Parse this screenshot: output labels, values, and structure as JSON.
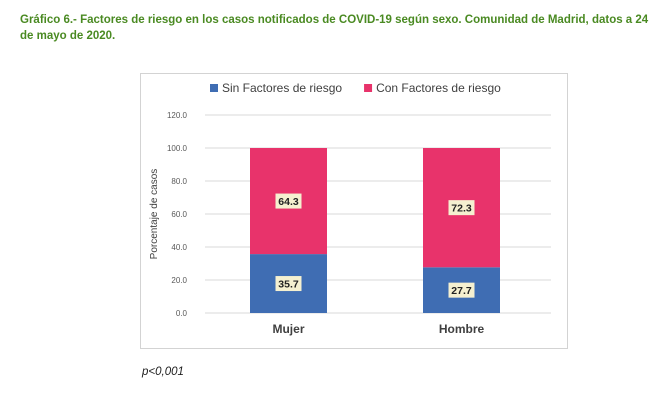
{
  "caption": "Gráfico 6.- Factores de riesgo en los casos notificados de COVID-19 según sexo. Comunidad de Madrid, datos a 24 de mayo de 2020.",
  "footnote": "p<0,001",
  "chart_data": {
    "type": "bar",
    "stacked": true,
    "categories": [
      "Mujer",
      "Hombre"
    ],
    "series": [
      {
        "name": "Sin Factores de riesgo",
        "values": [
          35.7,
          27.7
        ],
        "color": "#3f6db3"
      },
      {
        "name": "Con Factores de riesgo",
        "values": [
          64.3,
          72.3
        ],
        "color": "#e8336b"
      }
    ],
    "ylabel": "Porcentaje de casos",
    "ylim": [
      0,
      120
    ],
    "yticks": [
      "0.0",
      "20.0",
      "40.0",
      "60.0",
      "80.0",
      "100.0",
      "120.0"
    ],
    "legend_position": "top",
    "grid": true,
    "data_label_bg": "#f5f0d0"
  }
}
